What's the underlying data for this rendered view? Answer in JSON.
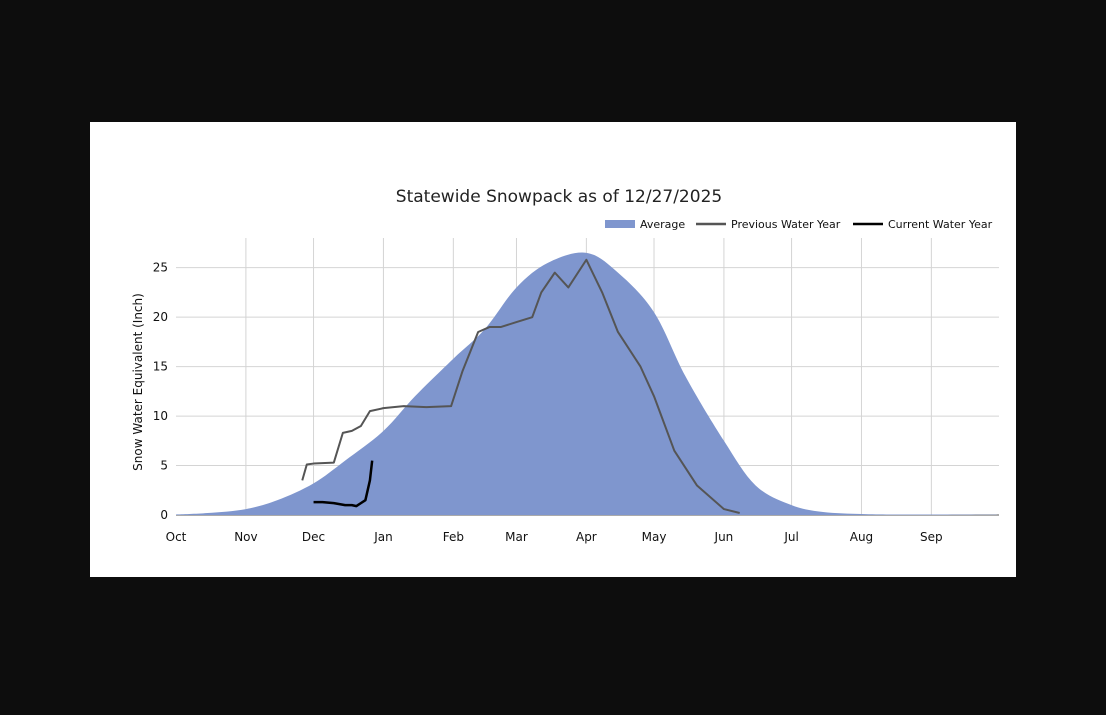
{
  "chart_data": {
    "type": "area",
    "title": "Statewide Snowpack as of 12/27/2025",
    "xlabel": "",
    "ylabel": "Snow Water Equivalent (Inch)",
    "ylim": [
      0,
      28
    ],
    "yticks": [
      0,
      5,
      10,
      15,
      20,
      25
    ],
    "months": [
      "Oct",
      "Nov",
      "Dec",
      "Jan",
      "Feb",
      "Mar",
      "Apr",
      "May",
      "Jun",
      "Jul",
      "Aug",
      "Sep"
    ],
    "grid": true,
    "legend_placement": "top-right",
    "colors": {
      "average": "#7f96ce",
      "previous": "#555555",
      "current": "#000000"
    },
    "series": [
      {
        "name": "Average",
        "style": "area",
        "x": [
          "Oct 1",
          "Oct 15",
          "Nov 1",
          "Nov 15",
          "Dec 1",
          "Dec 15",
          "Jan 1",
          "Jan 15",
          "Feb 1",
          "Feb 15",
          "Mar 1",
          "Mar 15",
          "Apr 1",
          "Apr 15",
          "May 1",
          "May 15",
          "Jun 1",
          "Jun 15",
          "Jul 1",
          "Jul 15",
          "Aug 1",
          "Aug 15",
          "Sep 1",
          "Sep 30"
        ],
        "y": [
          0.05,
          0.2,
          0.6,
          1.5,
          3.2,
          5.5,
          8.5,
          12.0,
          15.8,
          18.8,
          23.0,
          25.5,
          26.5,
          24.5,
          20.5,
          14.0,
          7.5,
          3.0,
          1.0,
          0.3,
          0.1,
          0.05,
          0.05,
          0.02
        ]
      },
      {
        "name": "Previous Water Year",
        "style": "line",
        "x": [
          "Nov 26",
          "Nov 28",
          "Dec 1",
          "Dec 10",
          "Dec 14",
          "Dec 18",
          "Dec 22",
          "Dec 26",
          "Jan 1",
          "Jan 10",
          "Jan 20",
          "Jan 31",
          "Feb 5",
          "Feb 12",
          "Feb 17",
          "Feb 22",
          "Mar 1",
          "Mar 8",
          "Mar 12",
          "Mar 18",
          "Mar 24",
          "Apr 1",
          "Apr 8",
          "Apr 15",
          "Apr 25",
          "May 1",
          "May 10",
          "May 20",
          "Jun 1",
          "Jun 8"
        ],
        "y": [
          3.5,
          5.1,
          5.2,
          5.3,
          8.3,
          8.5,
          9.0,
          10.5,
          10.8,
          11.0,
          10.9,
          11.0,
          14.5,
          18.5,
          19.0,
          19.0,
          19.5,
          20.0,
          22.5,
          24.5,
          23.0,
          25.8,
          22.5,
          18.5,
          15.0,
          12.0,
          6.5,
          3.0,
          0.6,
          0.2
        ]
      },
      {
        "name": "Current Water Year",
        "style": "line",
        "x": [
          "Dec 1",
          "Dec 5",
          "Dec 10",
          "Dec 15",
          "Dec 18",
          "Dec 20",
          "Dec 22",
          "Dec 24",
          "Dec 26",
          "Dec 27"
        ],
        "y": [
          1.3,
          1.3,
          1.2,
          1.0,
          1.0,
          0.9,
          1.2,
          1.5,
          3.5,
          5.5
        ]
      }
    ]
  }
}
